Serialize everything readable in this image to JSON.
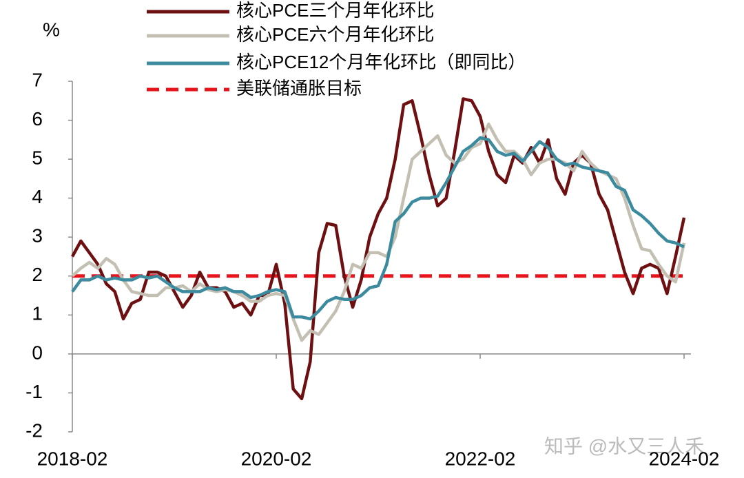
{
  "chart_data": {
    "type": "line",
    "y_label": "%",
    "watermark": "知乎 @水又三人禾",
    "categories": [
      "2018-02",
      null,
      null,
      null,
      null,
      null,
      null,
      null,
      null,
      null,
      null,
      null,
      null,
      null,
      null,
      null,
      null,
      null,
      null,
      null,
      null,
      null,
      null,
      null,
      "2020-02",
      null,
      null,
      null,
      null,
      null,
      null,
      null,
      null,
      null,
      null,
      null,
      null,
      null,
      null,
      null,
      null,
      null,
      null,
      null,
      null,
      null,
      null,
      null,
      "2022-02",
      null,
      null,
      null,
      null,
      null,
      null,
      null,
      null,
      null,
      null,
      null,
      null,
      null,
      null,
      null,
      null,
      null,
      null,
      null,
      null,
      null,
      null,
      null,
      "2024-02"
    ],
    "series": [
      {
        "name": "核心PCE三个月年化环比",
        "color": "#6e0f12",
        "values": [
          2.5,
          2.9,
          2.6,
          2.3,
          1.8,
          1.6,
          0.9,
          1.3,
          1.4,
          2.1,
          2.1,
          2.0,
          1.6,
          1.2,
          1.5,
          2.1,
          1.7,
          1.7,
          1.6,
          1.2,
          1.3,
          1.0,
          1.5,
          1.5,
          2.3,
          1.3,
          -0.9,
          -1.15,
          -0.2,
          2.6,
          3.35,
          3.3,
          2.0,
          1.2,
          1.9,
          3.0,
          3.6,
          4.0,
          5.0,
          6.4,
          6.5,
          5.6,
          4.6,
          3.8,
          4.0,
          5.2,
          6.55,
          6.5,
          6.1,
          5.2,
          4.6,
          4.4,
          5.1,
          4.9,
          5.3,
          4.9,
          5.5,
          4.5,
          4.1,
          4.9,
          5.1,
          4.9,
          4.1,
          3.7,
          2.9,
          2.1,
          1.55,
          2.2,
          2.3,
          2.2,
          1.55,
          2.5,
          3.5
        ]
      },
      {
        "name": "核心PCE六个月年化环比",
        "color": "#c3c0b3",
        "values": [
          2.0,
          2.2,
          2.35,
          2.2,
          2.45,
          2.3,
          1.9,
          1.6,
          1.55,
          1.5,
          1.5,
          1.7,
          1.7,
          1.75,
          1.6,
          1.8,
          1.65,
          1.6,
          1.65,
          1.6,
          1.5,
          1.35,
          1.35,
          1.5,
          1.55,
          1.5,
          0.9,
          0.35,
          0.6,
          0.5,
          0.8,
          1.1,
          1.6,
          2.3,
          2.2,
          2.6,
          2.6,
          2.5,
          3.0,
          4.0,
          5.0,
          5.2,
          5.4,
          5.6,
          5.1,
          4.9,
          5.0,
          5.3,
          5.4,
          5.9,
          5.5,
          5.2,
          5.2,
          5.0,
          4.6,
          4.9,
          5.0,
          5.0,
          4.9,
          4.7,
          5.2,
          4.9,
          4.7,
          4.6,
          4.5,
          4.0,
          3.3,
          2.7,
          2.65,
          2.3,
          2.0,
          1.85,
          2.85
        ]
      },
      {
        "name": "核心PCE12个月年化环比（即同比）",
        "color": "#3b8a9e",
        "values": [
          1.6,
          1.9,
          1.9,
          2.0,
          1.9,
          1.95,
          1.9,
          1.9,
          2.0,
          1.95,
          2.0,
          1.85,
          1.7,
          1.6,
          1.6,
          1.6,
          1.7,
          1.65,
          1.7,
          1.6,
          1.6,
          1.45,
          1.5,
          1.6,
          1.65,
          1.6,
          0.95,
          0.95,
          0.9,
          1.1,
          1.35,
          1.45,
          1.4,
          1.4,
          1.5,
          1.7,
          1.75,
          2.3,
          3.4,
          3.6,
          3.9,
          4.0,
          4.0,
          4.05,
          4.4,
          4.8,
          5.2,
          5.35,
          5.55,
          5.5,
          5.2,
          5.1,
          5.15,
          4.95,
          5.2,
          5.45,
          5.3,
          5.0,
          4.85,
          4.9,
          4.8,
          4.75,
          4.7,
          4.65,
          4.3,
          4.2,
          3.7,
          3.55,
          3.35,
          3.1,
          2.9,
          2.85,
          2.75
        ]
      }
    ],
    "reference_lines": [
      {
        "name": "美联储通胀目标",
        "value": 2,
        "color": "#e8141b",
        "dashed": true
      }
    ],
    "ylim": [
      -2,
      7
    ],
    "yticks": [
      -2,
      -1,
      0,
      1,
      2,
      3,
      4,
      5,
      6,
      7
    ],
    "grid": false,
    "legend": "top"
  }
}
